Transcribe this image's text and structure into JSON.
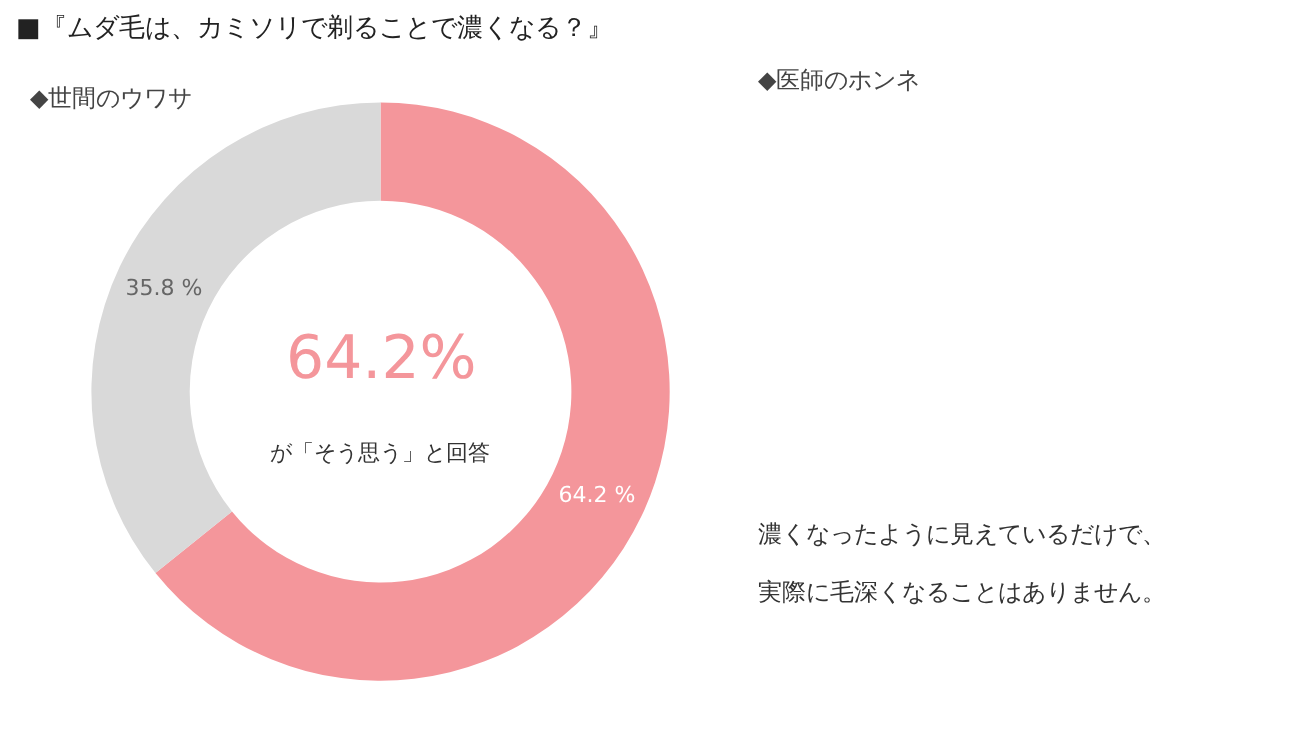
{
  "chart_data": {
    "type": "donut",
    "title": "■『ムダ毛は、カミソリで剃ることで濃くなる？』",
    "subtitle": "◆世間のウワサ",
    "categories": [
      null,
      null
    ],
    "values": [
      64.2,
      35.8
    ],
    "colors": [
      "#f4969b",
      "#d9d9d9"
    ],
    "value_labels": [
      "64.2 %",
      "35.8 %"
    ],
    "annotations": [
      "64.2%",
      "が「そう思う」と回答",
      "◆医師のホンネ",
      "濃くなったように見えているだけで、",
      "実際に毛深くなることはありません。"
    ],
    "legend": false
  }
}
